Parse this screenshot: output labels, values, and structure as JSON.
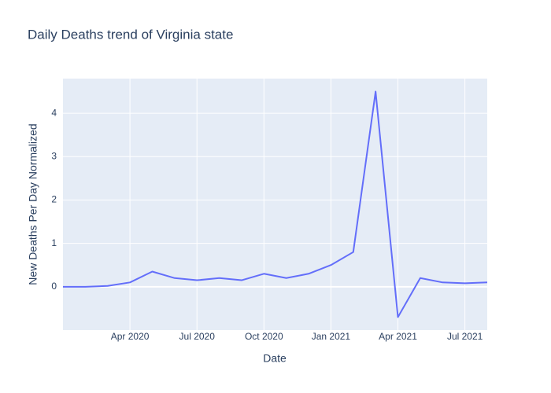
{
  "chart_data": {
    "type": "line",
    "title": "Daily Deaths trend of Virginia state",
    "x_label": "Date",
    "y_label": "New Deaths Per Day Normalized",
    "x": [
      "2020-01",
      "2020-02",
      "2020-03",
      "2020-04",
      "2020-05",
      "2020-06",
      "2020-07",
      "2020-08",
      "2020-09",
      "2020-10",
      "2020-11",
      "2020-12",
      "2021-01",
      "2021-02",
      "2021-03",
      "2021-04",
      "2021-05",
      "2021-06",
      "2021-07",
      "2021-08"
    ],
    "series": [
      {
        "color": "#636efa",
        "values": [
          0,
          0,
          0.02,
          0.1,
          0.35,
          0.2,
          0.15,
          0.2,
          0.15,
          0.3,
          0.2,
          0.3,
          0.5,
          0.8,
          4.5,
          -0.7,
          0.2,
          0.1,
          0.08,
          0.1
        ]
      }
    ],
    "xlim": [
      "2020-01",
      "2021-08"
    ],
    "xticks": [
      {
        "value": "2020-04",
        "label": "Apr 2020"
      },
      {
        "value": "2020-07",
        "label": "Jul 2020"
      },
      {
        "value": "2020-10",
        "label": "Oct 2020"
      },
      {
        "value": "2021-01",
        "label": "Jan 2021"
      },
      {
        "value": "2021-04",
        "label": "Apr 2021"
      },
      {
        "value": "2021-07",
        "label": "Jul 2021"
      }
    ],
    "ylim": [
      -1,
      4.8
    ],
    "yticks": [
      0,
      1,
      2,
      3,
      4
    ],
    "grid": true
  }
}
